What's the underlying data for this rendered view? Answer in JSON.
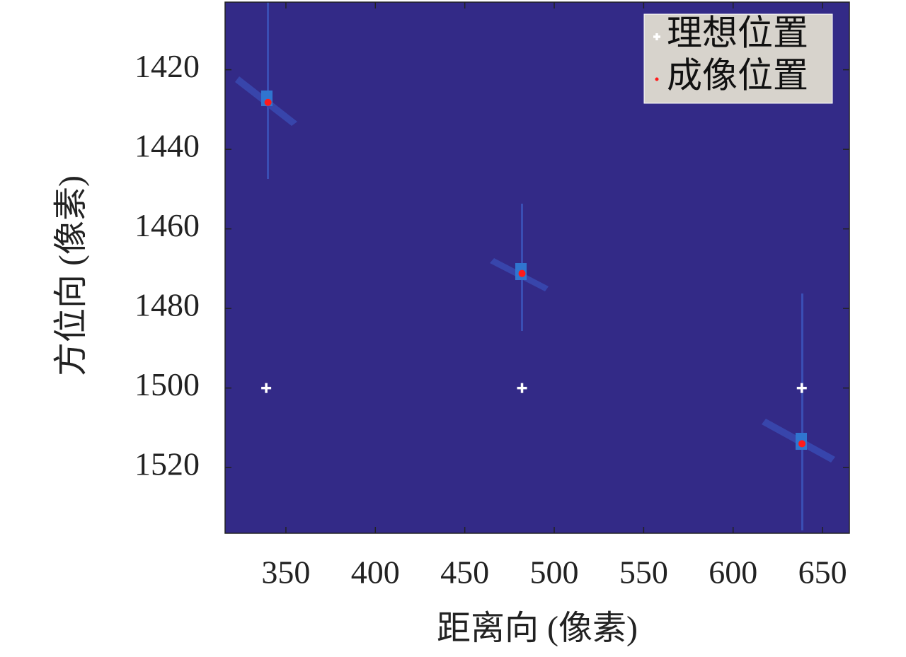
{
  "chart_data": {
    "type": "scatter",
    "xlabel": "距离向 (像素)",
    "ylabel": "方位向 (像素)",
    "xlim": [
      316,
      665
    ],
    "ylim": [
      1403,
      1536.5
    ],
    "y_reversed": true,
    "xticks": [
      350,
      400,
      450,
      500,
      550,
      600,
      650
    ],
    "yticks": [
      1420,
      1440,
      1460,
      1480,
      1500,
      1520
    ],
    "background_color": "#332a87",
    "legend_position": "northeast",
    "series": [
      {
        "name": "理想位置",
        "color": "#ffffff",
        "marker": "plus",
        "x": [
          339,
          482,
          638.4
        ],
        "values": [
          1500,
          1500,
          1500
        ]
      },
      {
        "name": "成像位置",
        "color": "#ff1a1a",
        "marker": "dot",
        "x": [
          340,
          482,
          638.5
        ],
        "values": [
          1428.2,
          1471.2,
          1514
        ]
      }
    ]
  }
}
